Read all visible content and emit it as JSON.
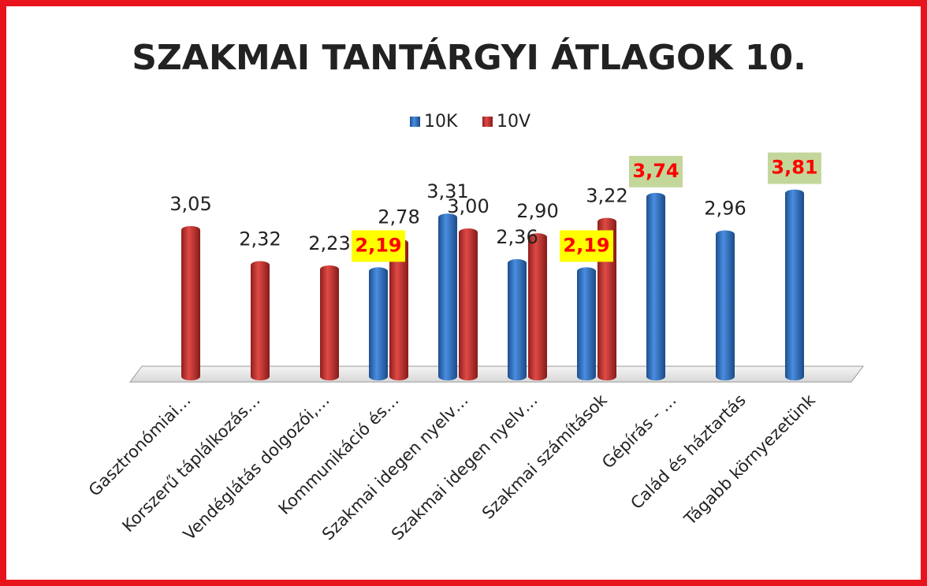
{
  "chart_data": {
    "type": "bar",
    "title": "SZAKMAI TANTÁRGYI ÁTLAGOK 10.",
    "categories": [
      "Gasztronómiai…",
      "Korszerű táplálkozás…",
      "Vendéglátás dolgozói,…",
      "Kommunikáció és…",
      "Szakmai idegen nyelv…",
      "Szakmai idegen nyelv…",
      "Szakmai számítások",
      "Gépírás - …",
      "Calád és háztartás",
      "Tágabb környezetünk"
    ],
    "series": [
      {
        "name": "10K",
        "color": "#2e6fc0",
        "values": [
          null,
          null,
          null,
          2.19,
          3.31,
          2.36,
          2.19,
          3.74,
          2.96,
          3.81
        ],
        "value_labels": [
          null,
          null,
          null,
          "2,19",
          "3,31",
          "2,36",
          "2,19",
          "3,74",
          "2,96",
          "3,81"
        ],
        "label_backgrounds": [
          null,
          null,
          null,
          "#ffff00",
          null,
          null,
          "#ffff00",
          "#c4d79b",
          null,
          "#c4d79b"
        ]
      },
      {
        "name": "10V",
        "color": "#c0302e",
        "values": [
          3.05,
          2.32,
          2.23,
          2.78,
          3.0,
          2.9,
          3.22,
          null,
          null,
          null
        ],
        "value_labels": [
          "3,05",
          "2,32",
          "2,23",
          "2,78",
          "3,00",
          "2,90",
          "3,22",
          null,
          null,
          null
        ],
        "label_backgrounds": [
          null,
          null,
          null,
          null,
          null,
          null,
          null,
          null,
          null,
          null
        ]
      }
    ],
    "ylim": [
      0,
      4
    ],
    "legend": "top"
  }
}
